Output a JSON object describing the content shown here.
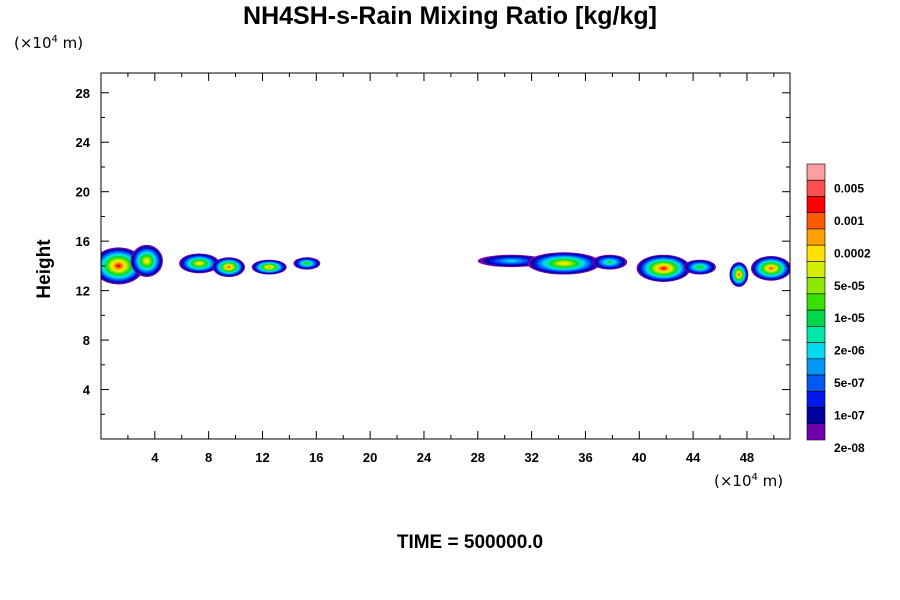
{
  "chart_data": {
    "type": "heatmap",
    "title": "NH4SH-s-Rain Mixing Ratio [kg/kg]",
    "ylabel": "Height",
    "x_unit": {
      "base": "(×10",
      "exp": "4",
      "rest": " m)"
    },
    "y_unit": {
      "base": "(×10",
      "exp": "4",
      "rest": " m)"
    },
    "xlim": [
      0,
      51.2
    ],
    "ylim": [
      0,
      29.6
    ],
    "x_ticks": [
      4,
      8,
      12,
      16,
      20,
      24,
      28,
      32,
      36,
      40,
      44,
      48
    ],
    "y_ticks": [
      4,
      8,
      12,
      16,
      20,
      24,
      28
    ],
    "colorbar": {
      "labels": [
        "0.005",
        "0.001",
        "0.0002",
        "5e-05",
        "1e-05",
        "2e-06",
        "5e-07",
        "1e-07",
        "2e-08"
      ],
      "colors": [
        "#ff9f9f",
        "#ff4f4f",
        "#ff0000",
        "#ff5a00",
        "#ffa000",
        "#ffe000",
        "#d4ef00",
        "#8ce800",
        "#3ce000",
        "#00d84c",
        "#00e8a8",
        "#00d8f0",
        "#0098f8",
        "#0058f0",
        "#0018e8",
        "#0000a0",
        "#7000b0"
      ]
    },
    "clouds": [
      {
        "x": 1.3,
        "y": 14.0,
        "rx": 1.9,
        "ry": 1.5,
        "peak": 0.92
      },
      {
        "x": 3.4,
        "y": 14.4,
        "rx": 1.2,
        "ry": 1.3,
        "peak": 0.75
      },
      {
        "x": 7.3,
        "y": 14.2,
        "rx": 1.5,
        "ry": 0.8,
        "peak": 0.72
      },
      {
        "x": 9.5,
        "y": 13.9,
        "rx": 1.2,
        "ry": 0.8,
        "peak": 0.85
      },
      {
        "x": 12.5,
        "y": 13.9,
        "rx": 1.3,
        "ry": 0.6,
        "peak": 0.8
      },
      {
        "x": 15.3,
        "y": 14.2,
        "rx": 1.0,
        "ry": 0.5,
        "peak": 0.55
      },
      {
        "x": 30.5,
        "y": 14.4,
        "rx": 2.5,
        "ry": 0.5,
        "peak": 0.35
      },
      {
        "x": 34.4,
        "y": 14.2,
        "rx": 2.7,
        "ry": 0.9,
        "peak": 0.72
      },
      {
        "x": 37.8,
        "y": 14.3,
        "rx": 1.3,
        "ry": 0.6,
        "peak": 0.5
      },
      {
        "x": 41.8,
        "y": 13.8,
        "rx": 2.0,
        "ry": 1.1,
        "peak": 0.92
      },
      {
        "x": 44.5,
        "y": 13.9,
        "rx": 1.2,
        "ry": 0.6,
        "peak": 0.55
      },
      {
        "x": 47.4,
        "y": 13.3,
        "rx": 0.7,
        "ry": 1.0,
        "peak": 0.88
      },
      {
        "x": 49.8,
        "y": 13.8,
        "rx": 1.5,
        "ry": 1.0,
        "peak": 0.9
      }
    ]
  },
  "time_label": "TIME = 500000.0"
}
